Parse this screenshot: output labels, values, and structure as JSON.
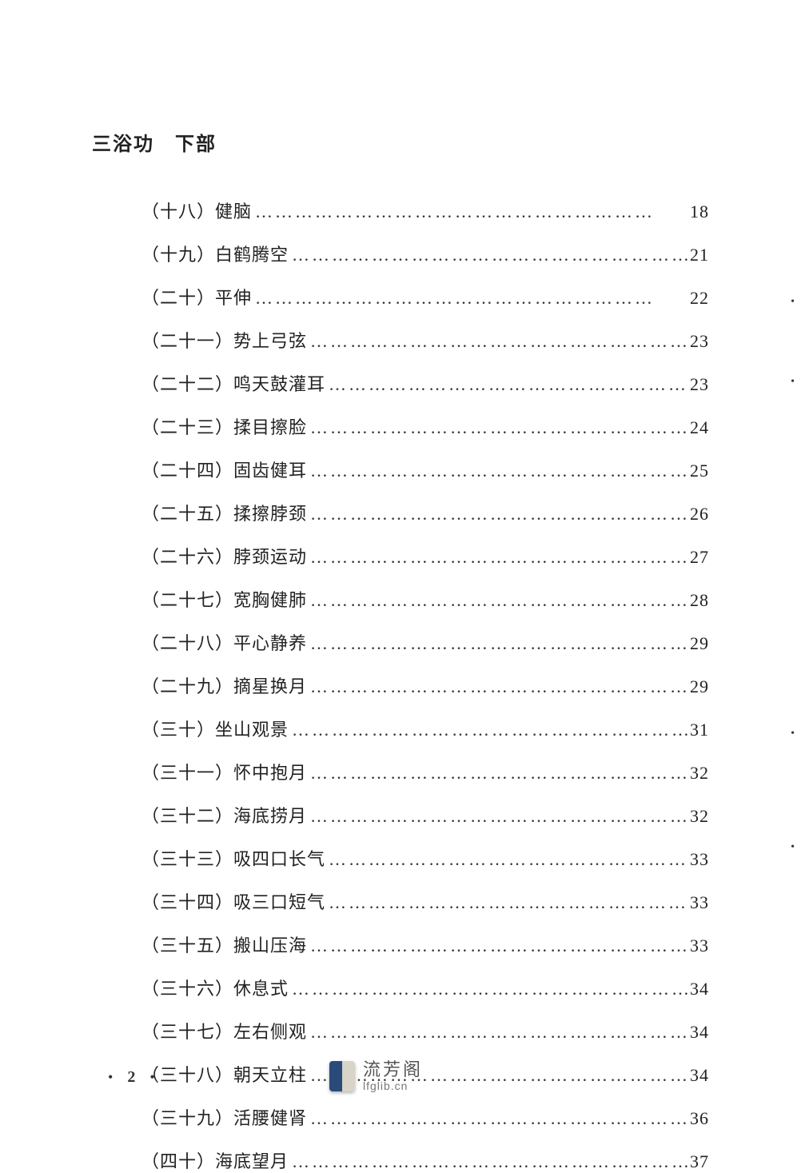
{
  "section_title": "三浴功　下部",
  "page_number": "2",
  "watermark": {
    "title": "流芳阁",
    "url": "lfglib.cn"
  },
  "dots": "……………………………………………………",
  "toc": [
    {
      "num": "（十八）",
      "title": "健脑",
      "page": "18"
    },
    {
      "num": "（十九）",
      "title": "白鹤腾空",
      "page": "21"
    },
    {
      "num": "（二十）",
      "title": "平伸",
      "page": "22"
    },
    {
      "num": "（二十一）",
      "title": "势上弓弦",
      "page": "23"
    },
    {
      "num": "（二十二）",
      "title": "鸣天鼓灌耳",
      "page": "23"
    },
    {
      "num": "（二十三）",
      "title": "揉目擦脸",
      "page": "24"
    },
    {
      "num": "（二十四）",
      "title": "固齿健耳",
      "page": "25"
    },
    {
      "num": "（二十五）",
      "title": "揉擦脖颈",
      "page": "26"
    },
    {
      "num": "（二十六）",
      "title": "脖颈运动",
      "page": "27"
    },
    {
      "num": "（二十七）",
      "title": "宽胸健肺",
      "page": "28"
    },
    {
      "num": "（二十八）",
      "title": "平心静养",
      "page": "29"
    },
    {
      "num": "（二十九）",
      "title": "摘星换月",
      "page": "29"
    },
    {
      "num": "（三十）",
      "title": "坐山观景",
      "page": "31"
    },
    {
      "num": "（三十一）",
      "title": "怀中抱月",
      "page": "32"
    },
    {
      "num": "（三十二）",
      "title": "海底捞月",
      "page": "32"
    },
    {
      "num": "（三十三）",
      "title": "吸四口长气",
      "page": "33"
    },
    {
      "num": "（三十四）",
      "title": "吸三口短气",
      "page": "33"
    },
    {
      "num": "（三十五）",
      "title": "搬山压海",
      "page": "33"
    },
    {
      "num": "（三十六）",
      "title": "休息式",
      "page": "34"
    },
    {
      "num": "（三十七）",
      "title": "左右侧观",
      "page": "34"
    },
    {
      "num": "（三十八）",
      "title": "朝天立柱",
      "page": "34"
    },
    {
      "num": "（三十九）",
      "title": "活腰健肾",
      "page": "36"
    },
    {
      "num": "（四十）",
      "title": "海底望月",
      "page": "37"
    }
  ],
  "colors": {
    "background": "#ffffff",
    "text": "#222222",
    "watermark_text": "#555555",
    "watermark_url": "#777777"
  },
  "typography": {
    "title_fontsize": 24,
    "entry_fontsize": 22,
    "font_family": "SimSun"
  }
}
